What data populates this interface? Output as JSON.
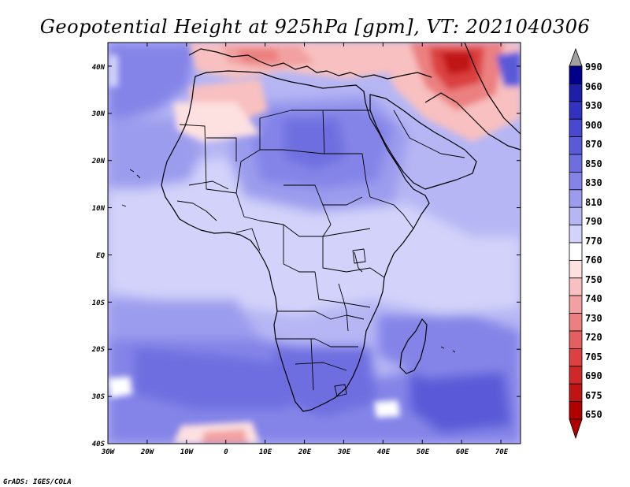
{
  "map": {
    "title": "Geopotential Height at 925hPa [gpm], VT: 2021040306",
    "credit": "GrADS: IGES/COLA",
    "lat_labels": [
      "40N",
      "30N",
      "20N",
      "10N",
      "EQ",
      "10S",
      "20S",
      "30S",
      "40S"
    ],
    "lon_labels": [
      "30W",
      "20W",
      "10W",
      "0",
      "10E",
      "20E",
      "30E",
      "40E",
      "50E",
      "60E",
      "70E"
    ],
    "extent": {
      "lon_min": -30,
      "lon_max": 75,
      "lat_min": -40,
      "lat_max": 45
    },
    "colorbar": {
      "labels": [
        "990",
        "960",
        "930",
        "900",
        "870",
        "850",
        "830",
        "810",
        "790",
        "770",
        "760",
        "750",
        "740",
        "730",
        "720",
        "705",
        "690",
        "675",
        "650"
      ],
      "colors": [
        "#00008b",
        "#1e1ea8",
        "#3232c0",
        "#4848d0",
        "#5a5ad8",
        "#6e6ee0",
        "#8484e8",
        "#9c9cee",
        "#b6b6f4",
        "#d2d2fa",
        "#ffffff",
        "#fde0e0",
        "#f8c0c0",
        "#f2a0a0",
        "#ec8080",
        "#e46060",
        "#dc4040",
        "#d02828",
        "#c01414",
        "#b00000"
      ],
      "max_arrow_color": "#a0a0a0",
      "min_arrow_color": "#b00000"
    }
  }
}
